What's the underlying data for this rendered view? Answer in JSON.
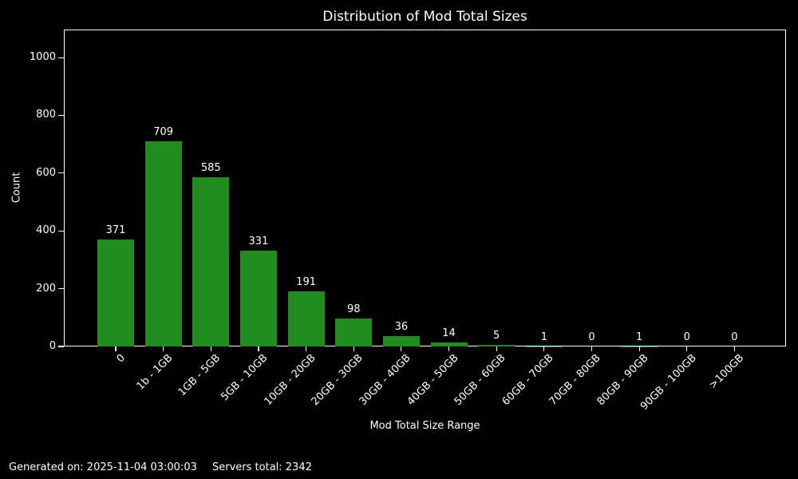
{
  "chart_data": {
    "type": "bar",
    "title": "Distribution of Mod Total Sizes",
    "xlabel": "Mod Total Size Range",
    "ylabel": "Count",
    "categories": [
      "0",
      "1b - 1GB",
      "1GB - 5GB",
      "5GB - 10GB",
      "10GB - 20GB",
      "20GB - 30GB",
      "30GB - 40GB",
      "40GB - 50GB",
      "50GB - 60GB",
      "60GB - 70GB",
      "70GB - 80GB",
      "80GB - 90GB",
      "90GB - 100GB",
      ">100GB"
    ],
    "values": [
      371,
      709,
      585,
      331,
      191,
      98,
      36,
      14,
      5,
      1,
      0,
      1,
      0,
      0
    ],
    "y_ticks": [
      0,
      200,
      400,
      600,
      800,
      1000
    ],
    "ylim": [
      0,
      1097
    ],
    "bar_color": "#228B22",
    "background_color": "#000000",
    "text_color": "#ffffff",
    "grid": false,
    "legend": null
  },
  "footer": {
    "generated_label": "Generated on: 2025-11-04 03:00:03",
    "servers_total_label": "Servers total: 2342"
  }
}
